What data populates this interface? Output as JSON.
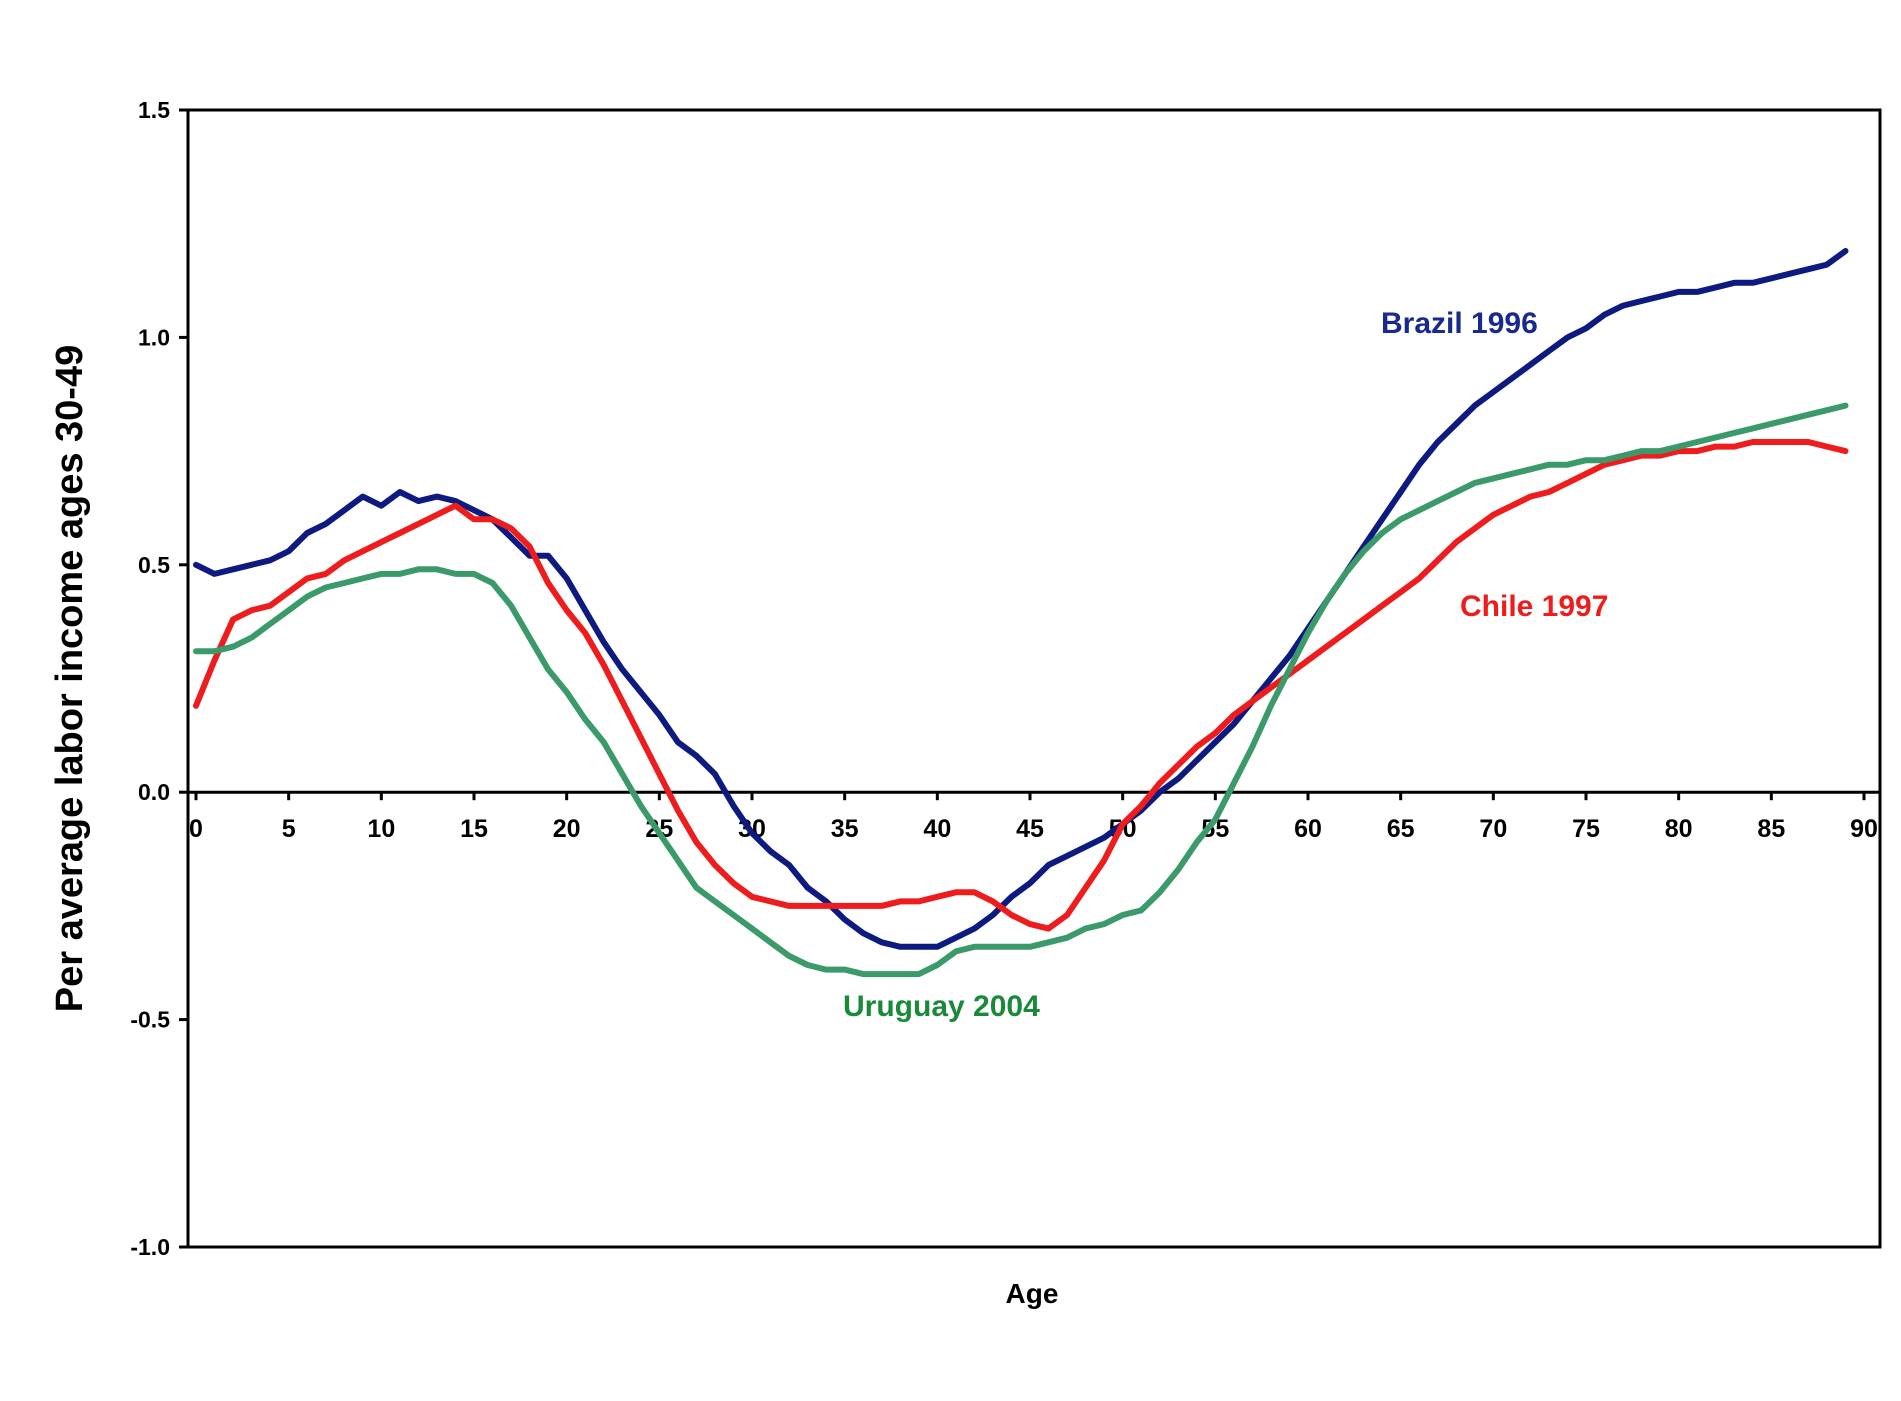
{
  "chart_data": {
    "type": "line",
    "title": "",
    "xlabel": "Age",
    "ylabel": "Per average labor income ages 30-49",
    "xlim": [
      0,
      90
    ],
    "ylim": [
      -1.0,
      1.5
    ],
    "x_ticks": [
      0,
      5,
      10,
      15,
      20,
      25,
      30,
      35,
      40,
      45,
      50,
      55,
      60,
      65,
      70,
      75,
      80,
      85,
      90
    ],
    "x_tick_labels": [
      "0",
      "5",
      "10",
      "15",
      "20",
      "25",
      "30",
      "35",
      "40",
      "45",
      "50",
      "55",
      "60",
      "65",
      "70",
      "75",
      "80",
      "85",
      "90"
    ],
    "y_ticks": [
      -1.0,
      -0.5,
      0.0,
      0.5,
      1.0,
      1.5
    ],
    "y_tick_labels": [
      "-1.0",
      "-0.5",
      "0.0",
      "0.5",
      "1.0",
      "1.5"
    ],
    "grid": false,
    "legend": "none",
    "series": [
      {
        "name": "Brazil 1996",
        "color": "#0d1a80",
        "points": [
          [
            0,
            0.5
          ],
          [
            1,
            0.48
          ],
          [
            2,
            0.49
          ],
          [
            3,
            0.5
          ],
          [
            4,
            0.51
          ],
          [
            5,
            0.53
          ],
          [
            6,
            0.57
          ],
          [
            7,
            0.59
          ],
          [
            8,
            0.62
          ],
          [
            9,
            0.65
          ],
          [
            10,
            0.63
          ],
          [
            11,
            0.66
          ],
          [
            12,
            0.64
          ],
          [
            13,
            0.65
          ],
          [
            14,
            0.64
          ],
          [
            15,
            0.62
          ],
          [
            16,
            0.6
          ],
          [
            17,
            0.56
          ],
          [
            18,
            0.52
          ],
          [
            19,
            0.52
          ],
          [
            20,
            0.47
          ],
          [
            21,
            0.4
          ],
          [
            22,
            0.33
          ],
          [
            23,
            0.27
          ],
          [
            24,
            0.22
          ],
          [
            25,
            0.17
          ],
          [
            26,
            0.11
          ],
          [
            27,
            0.08
          ],
          [
            28,
            0.04
          ],
          [
            29,
            -0.03
          ],
          [
            30,
            -0.09
          ],
          [
            31,
            -0.13
          ],
          [
            32,
            -0.16
          ],
          [
            33,
            -0.21
          ],
          [
            34,
            -0.24
          ],
          [
            35,
            -0.28
          ],
          [
            36,
            -0.31
          ],
          [
            37,
            -0.33
          ],
          [
            38,
            -0.34
          ],
          [
            39,
            -0.34
          ],
          [
            40,
            -0.34
          ],
          [
            41,
            -0.32
          ],
          [
            42,
            -0.3
          ],
          [
            43,
            -0.27
          ],
          [
            44,
            -0.23
          ],
          [
            45,
            -0.2
          ],
          [
            46,
            -0.16
          ],
          [
            47,
            -0.14
          ],
          [
            48,
            -0.12
          ],
          [
            49,
            -0.1
          ],
          [
            50,
            -0.07
          ],
          [
            51,
            -0.04
          ],
          [
            52,
            0.0
          ],
          [
            53,
            0.03
          ],
          [
            54,
            0.07
          ],
          [
            55,
            0.11
          ],
          [
            56,
            0.15
          ],
          [
            57,
            0.2
          ],
          [
            58,
            0.25
          ],
          [
            59,
            0.3
          ],
          [
            60,
            0.36
          ],
          [
            61,
            0.42
          ],
          [
            62,
            0.48
          ],
          [
            63,
            0.54
          ],
          [
            64,
            0.6
          ],
          [
            65,
            0.66
          ],
          [
            66,
            0.72
          ],
          [
            67,
            0.77
          ],
          [
            68,
            0.81
          ],
          [
            69,
            0.85
          ],
          [
            70,
            0.88
          ],
          [
            71,
            0.91
          ],
          [
            72,
            0.94
          ],
          [
            73,
            0.97
          ],
          [
            74,
            1.0
          ],
          [
            75,
            1.02
          ],
          [
            76,
            1.05
          ],
          [
            77,
            1.07
          ],
          [
            78,
            1.08
          ],
          [
            79,
            1.09
          ],
          [
            80,
            1.1
          ],
          [
            81,
            1.1
          ],
          [
            82,
            1.11
          ],
          [
            83,
            1.12
          ],
          [
            84,
            1.12
          ],
          [
            85,
            1.13
          ],
          [
            86,
            1.14
          ],
          [
            87,
            1.15
          ],
          [
            88,
            1.16
          ],
          [
            89,
            1.19
          ]
        ],
        "label": "Brazil 1996"
      },
      {
        "name": "Chile 1997",
        "color": "#ee1c1c",
        "points": [
          [
            0,
            0.19
          ],
          [
            1,
            0.29
          ],
          [
            2,
            0.38
          ],
          [
            3,
            0.4
          ],
          [
            4,
            0.41
          ],
          [
            5,
            0.44
          ],
          [
            6,
            0.47
          ],
          [
            7,
            0.48
          ],
          [
            8,
            0.51
          ],
          [
            9,
            0.53
          ],
          [
            10,
            0.55
          ],
          [
            11,
            0.57
          ],
          [
            12,
            0.59
          ],
          [
            13,
            0.61
          ],
          [
            14,
            0.63
          ],
          [
            15,
            0.6
          ],
          [
            16,
            0.6
          ],
          [
            17,
            0.58
          ],
          [
            18,
            0.54
          ],
          [
            19,
            0.46
          ],
          [
            20,
            0.4
          ],
          [
            21,
            0.35
          ],
          [
            22,
            0.28
          ],
          [
            23,
            0.2
          ],
          [
            24,
            0.12
          ],
          [
            25,
            0.04
          ],
          [
            26,
            -0.04
          ],
          [
            27,
            -0.11
          ],
          [
            28,
            -0.16
          ],
          [
            29,
            -0.2
          ],
          [
            30,
            -0.23
          ],
          [
            31,
            -0.24
          ],
          [
            32,
            -0.25
          ],
          [
            33,
            -0.25
          ],
          [
            34,
            -0.25
          ],
          [
            35,
            -0.25
          ],
          [
            36,
            -0.25
          ],
          [
            37,
            -0.25
          ],
          [
            38,
            -0.24
          ],
          [
            39,
            -0.24
          ],
          [
            40,
            -0.23
          ],
          [
            41,
            -0.22
          ],
          [
            42,
            -0.22
          ],
          [
            43,
            -0.24
          ],
          [
            44,
            -0.27
          ],
          [
            45,
            -0.29
          ],
          [
            46,
            -0.3
          ],
          [
            47,
            -0.27
          ],
          [
            48,
            -0.21
          ],
          [
            49,
            -0.15
          ],
          [
            50,
            -0.07
          ],
          [
            51,
            -0.03
          ],
          [
            52,
            0.02
          ],
          [
            53,
            0.06
          ],
          [
            54,
            0.1
          ],
          [
            55,
            0.13
          ],
          [
            56,
            0.17
          ],
          [
            57,
            0.2
          ],
          [
            58,
            0.23
          ],
          [
            59,
            0.26
          ],
          [
            60,
            0.29
          ],
          [
            61,
            0.32
          ],
          [
            62,
            0.35
          ],
          [
            63,
            0.38
          ],
          [
            64,
            0.41
          ],
          [
            65,
            0.44
          ],
          [
            66,
            0.47
          ],
          [
            67,
            0.51
          ],
          [
            68,
            0.55
          ],
          [
            69,
            0.58
          ],
          [
            70,
            0.61
          ],
          [
            71,
            0.63
          ],
          [
            72,
            0.65
          ],
          [
            73,
            0.66
          ],
          [
            74,
            0.68
          ],
          [
            75,
            0.7
          ],
          [
            76,
            0.72
          ],
          [
            77,
            0.73
          ],
          [
            78,
            0.74
          ],
          [
            79,
            0.74
          ],
          [
            80,
            0.75
          ],
          [
            81,
            0.75
          ],
          [
            82,
            0.76
          ],
          [
            83,
            0.76
          ],
          [
            84,
            0.77
          ],
          [
            85,
            0.77
          ],
          [
            86,
            0.77
          ],
          [
            87,
            0.77
          ],
          [
            88,
            0.76
          ],
          [
            89,
            0.75
          ]
        ],
        "label": "Chile 1997"
      },
      {
        "name": "Uruguay 2004",
        "color": "#3a9a6a",
        "points": [
          [
            0,
            0.31
          ],
          [
            1,
            0.31
          ],
          [
            2,
            0.32
          ],
          [
            3,
            0.34
          ],
          [
            4,
            0.37
          ],
          [
            5,
            0.4
          ],
          [
            6,
            0.43
          ],
          [
            7,
            0.45
          ],
          [
            8,
            0.46
          ],
          [
            9,
            0.47
          ],
          [
            10,
            0.48
          ],
          [
            11,
            0.48
          ],
          [
            12,
            0.49
          ],
          [
            13,
            0.49
          ],
          [
            14,
            0.48
          ],
          [
            15,
            0.48
          ],
          [
            16,
            0.46
          ],
          [
            17,
            0.41
          ],
          [
            18,
            0.34
          ],
          [
            19,
            0.27
          ],
          [
            20,
            0.22
          ],
          [
            21,
            0.16
          ],
          [
            22,
            0.11
          ],
          [
            23,
            0.04
          ],
          [
            24,
            -0.03
          ],
          [
            25,
            -0.09
          ],
          [
            26,
            -0.15
          ],
          [
            27,
            -0.21
          ],
          [
            28,
            -0.24
          ],
          [
            29,
            -0.27
          ],
          [
            30,
            -0.3
          ],
          [
            31,
            -0.33
          ],
          [
            32,
            -0.36
          ],
          [
            33,
            -0.38
          ],
          [
            34,
            -0.39
          ],
          [
            35,
            -0.39
          ],
          [
            36,
            -0.4
          ],
          [
            37,
            -0.4
          ],
          [
            38,
            -0.4
          ],
          [
            39,
            -0.4
          ],
          [
            40,
            -0.38
          ],
          [
            41,
            -0.35
          ],
          [
            42,
            -0.34
          ],
          [
            43,
            -0.34
          ],
          [
            44,
            -0.34
          ],
          [
            45,
            -0.34
          ],
          [
            46,
            -0.33
          ],
          [
            47,
            -0.32
          ],
          [
            48,
            -0.3
          ],
          [
            49,
            -0.29
          ],
          [
            50,
            -0.27
          ],
          [
            51,
            -0.26
          ],
          [
            52,
            -0.22
          ],
          [
            53,
            -0.17
          ],
          [
            54,
            -0.11
          ],
          [
            55,
            -0.06
          ],
          [
            56,
            0.02
          ],
          [
            57,
            0.1
          ],
          [
            58,
            0.19
          ],
          [
            59,
            0.27
          ],
          [
            60,
            0.35
          ],
          [
            61,
            0.42
          ],
          [
            62,
            0.48
          ],
          [
            63,
            0.53
          ],
          [
            64,
            0.57
          ],
          [
            65,
            0.6
          ],
          [
            66,
            0.62
          ],
          [
            67,
            0.64
          ],
          [
            68,
            0.66
          ],
          [
            69,
            0.68
          ],
          [
            70,
            0.69
          ],
          [
            71,
            0.7
          ],
          [
            72,
            0.71
          ],
          [
            73,
            0.72
          ],
          [
            74,
            0.72
          ],
          [
            75,
            0.73
          ],
          [
            76,
            0.73
          ],
          [
            77,
            0.74
          ],
          [
            78,
            0.75
          ],
          [
            79,
            0.75
          ],
          [
            80,
            0.76
          ],
          [
            81,
            0.77
          ],
          [
            82,
            0.78
          ],
          [
            83,
            0.79
          ],
          [
            84,
            0.8
          ],
          [
            85,
            0.81
          ],
          [
            86,
            0.82
          ],
          [
            87,
            0.83
          ],
          [
            88,
            0.84
          ],
          [
            89,
            0.85
          ]
        ],
        "label": "Uruguay 2004"
      }
    ]
  }
}
